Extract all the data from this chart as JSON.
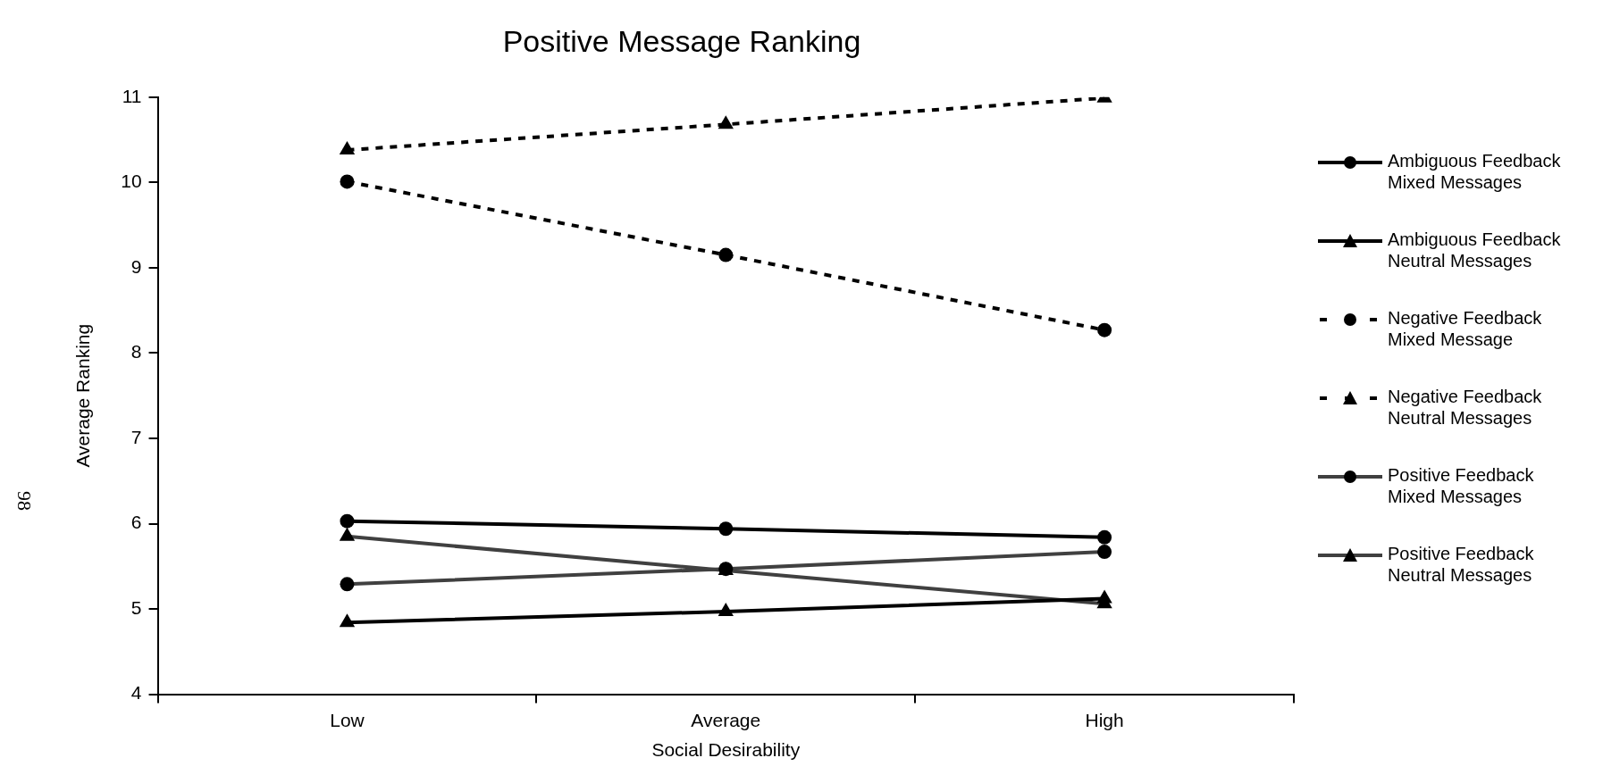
{
  "chart_data": {
    "type": "line",
    "title": "Positive Message Ranking",
    "xlabel": "Social Desirability",
    "ylabel": "Average Ranking",
    "categories": [
      "Low",
      "Average",
      "High"
    ],
    "ylim": [
      4,
      11
    ],
    "yticks": [
      4,
      5,
      6,
      7,
      8,
      9,
      10,
      11
    ],
    "grid": false,
    "legend": "right",
    "annotations": [
      "98"
    ],
    "series": [
      {
        "name": "Ambiguous Feedback Mixed Messages",
        "color": "#000000",
        "marker": "circle",
        "line_style": "solid",
        "values": [
          6.03,
          5.94,
          5.84
        ]
      },
      {
        "name": "Ambiguous Feedback Neutral Messages",
        "color": "#000000",
        "marker": "triangle",
        "line_style": "solid",
        "values": [
          4.84,
          4.97,
          5.12
        ]
      },
      {
        "name": "Negative Feedback Mixed Message",
        "color": "#000000",
        "marker": "circle",
        "line_style": "dashed",
        "values": [
          10.01,
          9.15,
          8.27
        ]
      },
      {
        "name": "Negative Feedback Neutral Messages",
        "color": "#000000",
        "marker": "triangle",
        "line_style": "dashed",
        "values": [
          10.38,
          10.68,
          10.99
        ]
      },
      {
        "name": "Positive Feedback Mixed Messages",
        "color": "#404040",
        "marker": "circle",
        "line_style": "solid",
        "values": [
          5.29,
          5.47,
          5.67
        ]
      },
      {
        "name": "Positive Feedback Neutral Messages",
        "color": "#404040",
        "marker": "triangle",
        "line_style": "solid",
        "values": [
          5.85,
          5.45,
          5.06
        ]
      }
    ]
  }
}
